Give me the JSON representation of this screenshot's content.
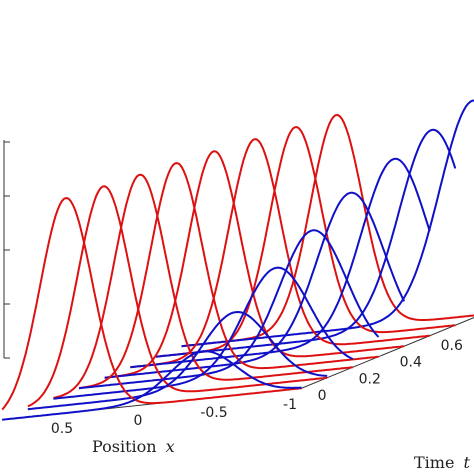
{
  "chart_data": {
    "type": "line",
    "projection": "3d-waterfall",
    "title": "",
    "xlabel": {
      "text": "Position",
      "var": "x"
    },
    "ylabel": {
      "text": "Time",
      "var": "t"
    },
    "zlabel": "",
    "x_ticks": [
      "0.5",
      "0",
      "-0.5",
      "-1"
    ],
    "t_ticks": [
      "0",
      "0.2",
      "0.4",
      "0.6"
    ],
    "colors": {
      "red": "#dd1111",
      "blue": "#1010c8"
    },
    "t": [
      0,
      0.125,
      0.25,
      0.375,
      0.5,
      0.625,
      0.75,
      0.875
    ],
    "series": [
      {
        "color": "red",
        "centers": [
          0.5,
          0.42,
          0.35,
          0.28,
          0.2,
          0.1,
          0.0,
          -0.1
        ],
        "amplitude": 1.0,
        "width": 0.17
      },
      {
        "color": "blue",
        "centers": [
          -0.4,
          -0.45,
          -0.55,
          -0.62,
          -0.7,
          -0.82,
          -0.9,
          -1.0
        ],
        "amplitude": [
          0.22,
          0.35,
          0.5,
          0.62,
          0.74,
          0.84,
          0.92,
          1.0
        ],
        "width": 0.22
      }
    ]
  }
}
